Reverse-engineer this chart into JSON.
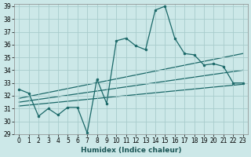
{
  "xlabel": "Humidex (Indice chaleur)",
  "xlim": [
    -0.5,
    23.5
  ],
  "ylim": [
    29,
    39.2
  ],
  "yticks": [
    29,
    30,
    31,
    32,
    33,
    34,
    35,
    36,
    37,
    38,
    39
  ],
  "xticks": [
    0,
    1,
    2,
    3,
    4,
    5,
    6,
    7,
    8,
    9,
    10,
    11,
    12,
    13,
    14,
    15,
    16,
    17,
    18,
    19,
    20,
    21,
    22,
    23
  ],
  "bg_color": "#cce8e8",
  "grid_color": "#a8cccc",
  "line_color": "#1a6868",
  "main_line": {
    "x": [
      0,
      1,
      2,
      3,
      4,
      5,
      6,
      7,
      8,
      9,
      10,
      11,
      12,
      13,
      14,
      15,
      16,
      17,
      18,
      19,
      20,
      21,
      22,
      23
    ],
    "y": [
      32.5,
      32.2,
      30.4,
      31.0,
      30.5,
      31.1,
      31.1,
      29.1,
      33.3,
      31.4,
      36.3,
      36.5,
      35.9,
      35.6,
      38.7,
      39.0,
      36.5,
      35.3,
      35.2,
      34.4,
      34.5,
      34.3,
      33.0,
      33.0
    ]
  },
  "trend_lines": [
    {
      "x": [
        0,
        23
      ],
      "y": [
        31.8,
        35.3
      ]
    },
    {
      "x": [
        0,
        23
      ],
      "y": [
        31.5,
        34.0
      ]
    },
    {
      "x": [
        0,
        23
      ],
      "y": [
        31.2,
        32.9
      ]
    }
  ]
}
